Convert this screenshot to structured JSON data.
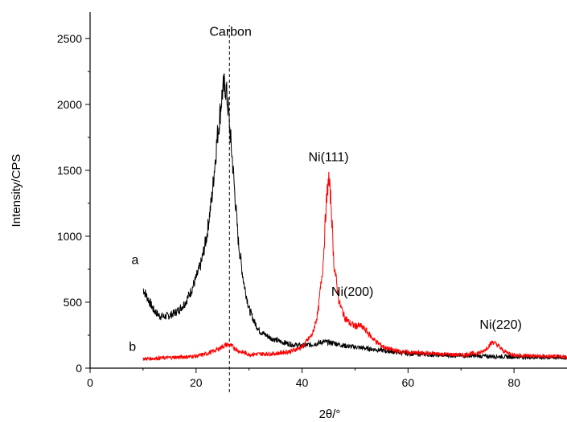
{
  "chart_data": {
    "type": "line",
    "xlabel": "2θ/°",
    "ylabel": "Intensity/CPS",
    "xlim": [
      0,
      90
    ],
    "ylim": [
      0,
      2700
    ],
    "xticks": [
      0,
      20,
      40,
      60,
      80
    ],
    "yticks": [
      0,
      500,
      1000,
      1500,
      2000,
      2500
    ],
    "grid": false,
    "legend": "none",
    "series": [
      {
        "name": "a",
        "color": "#000000",
        "x": [
          10,
          11,
          12,
          13,
          14,
          15,
          16,
          17,
          18,
          19,
          20,
          21,
          22,
          23,
          24,
          25,
          25.5,
          26,
          27,
          28,
          29,
          30,
          31,
          32,
          34,
          36,
          38,
          40,
          42,
          44,
          46,
          48,
          50,
          52,
          54,
          56,
          58,
          60,
          65,
          70,
          75,
          80,
          85,
          90
        ],
        "y": [
          600,
          520,
          440,
          400,
          390,
          400,
          420,
          450,
          500,
          580,
          680,
          800,
          1000,
          1300,
          1750,
          2100,
          2150,
          2000,
          1500,
          950,
          650,
          450,
          350,
          280,
          230,
          200,
          180,
          170,
          180,
          200,
          190,
          170,
          160,
          150,
          140,
          130,
          120,
          110,
          100,
          95,
          90,
          85,
          80,
          80
        ]
      },
      {
        "name": "b",
        "color": "#ff0000",
        "x": [
          10,
          15,
          20,
          22,
          24,
          25,
          26,
          27,
          28,
          30,
          35,
          38,
          40,
          42,
          43,
          44,
          44.5,
          45,
          45.5,
          46,
          47,
          48,
          49,
          50,
          51,
          52,
          53,
          54,
          55,
          56,
          58,
          60,
          65,
          70,
          74,
          75,
          76,
          77,
          78,
          80,
          85,
          90
        ],
        "y": [
          70,
          80,
          90,
          110,
          140,
          165,
          180,
          160,
          130,
          105,
          110,
          130,
          160,
          260,
          420,
          800,
          1200,
          1450,
          1250,
          800,
          500,
          390,
          340,
          320,
          320,
          290,
          240,
          200,
          170,
          150,
          130,
          120,
          110,
          100,
          120,
          160,
          200,
          170,
          130,
          100,
          90,
          85
        ]
      }
    ],
    "annotations": [
      {
        "text": "Carbon",
        "x": 26.5,
        "y": 2520
      },
      {
        "text": "Ni(111)",
        "x": 45,
        "y": 1570
      },
      {
        "text": "Ni(200)",
        "x": 49.5,
        "y": 550
      },
      {
        "text": "Ni(220)",
        "x": 77.5,
        "y": 300
      },
      {
        "text": "a",
        "x": 8.5,
        "y": 790
      },
      {
        "text": "b",
        "x": 8,
        "y": 130
      }
    ],
    "reference_line": {
      "x": 26.3,
      "style": "dashed"
    }
  }
}
